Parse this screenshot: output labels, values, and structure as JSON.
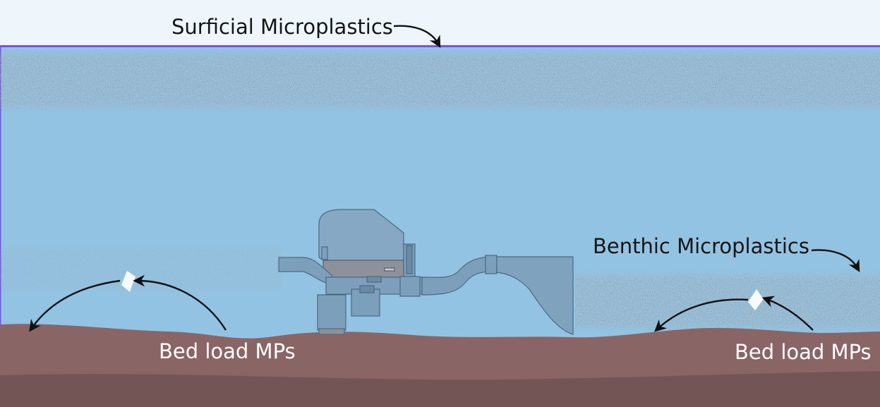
{
  "labels": {
    "surficial": "Surficial Microplastics",
    "benthic": "Benthic Microplastics",
    "bed_load_left": "Bed load MPs",
    "bed_load_right": "Bed load MPs"
  },
  "colors": {
    "sky": "#eef6fc",
    "water": "#93c3e2",
    "water_border": "#7b4df0",
    "sediment_top": "#8a6565",
    "sediment_bottom": "#745555",
    "device_fill": "#7c9fbc",
    "device_stroke": "#4a6a85",
    "particle": "#ffffff",
    "arrow": "#111111"
  }
}
